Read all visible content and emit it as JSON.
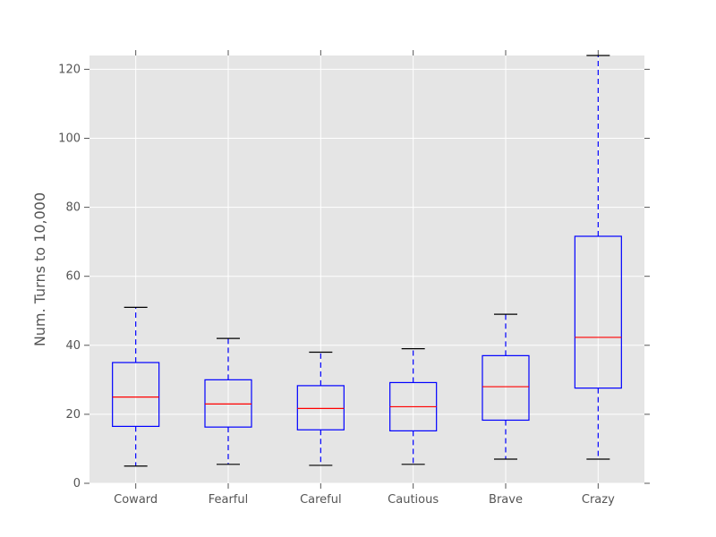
{
  "chart_data": {
    "type": "box",
    "title": "",
    "xlabel": "",
    "ylabel": "Num. Turns to 10,000",
    "ylim": [
      0,
      124
    ],
    "yticks": [
      0,
      20,
      40,
      60,
      80,
      100,
      120
    ],
    "grid": true,
    "categories": [
      "Coward",
      "Fearful",
      "Careful",
      "Cautious",
      "Brave",
      "Crazy"
    ],
    "boxes": [
      {
        "category": "Coward",
        "whisker_low": 5,
        "q1": 16.5,
        "median": 25,
        "q3": 35,
        "whisker_high": 51
      },
      {
        "category": "Fearful",
        "whisker_low": 5.5,
        "q1": 16.3,
        "median": 23,
        "q3": 30,
        "whisker_high": 42
      },
      {
        "category": "Careful",
        "whisker_low": 5.2,
        "q1": 15.5,
        "median": 21.7,
        "q3": 28.3,
        "whisker_high": 38
      },
      {
        "category": "Cautious",
        "whisker_low": 5.5,
        "q1": 15.2,
        "median": 22.2,
        "q3": 29.2,
        "whisker_high": 39
      },
      {
        "category": "Brave",
        "whisker_low": 7,
        "q1": 18.3,
        "median": 28,
        "q3": 37,
        "whisker_high": 49
      },
      {
        "category": "Crazy",
        "whisker_low": 7,
        "q1": 27.6,
        "median": 42.3,
        "q3": 71.6,
        "whisker_high": 124
      }
    ],
    "colors": {
      "background": "#e5e5e5",
      "grid": "#ffffff",
      "box": "#0000ff",
      "median": "#ff0000",
      "cap": "#000000",
      "text": "#555555",
      "tick": "#555555"
    }
  }
}
